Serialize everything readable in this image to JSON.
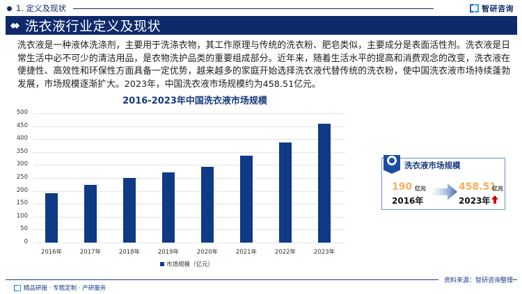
{
  "header": {
    "section_label": "1. 定义及现状",
    "brand_name": "智研咨询",
    "title": "洗衣液行业定义及现状"
  },
  "intro_text": "洗衣液是一种液体洗涤剂，主要用于洗涤衣物，其工作原理与传统的洗衣粉、肥皂类似，主要成分是表面活性剂。洗衣液是日常生活中必不可少的清洁用品，是衣物洗护品类的重要组成部分。近年来，随着生活水平的提高和消费观念的改变，洗衣液在便捷性、高效性和环保性方面具备一定优势，越来越多的家庭开始选择洗衣液代替传统的洗衣粉，使中国洗衣液市场持续蓬勃发展，市场规模逐渐扩大。2023年，中国洗衣液市场规模约为458.51亿元。",
  "chart_data": {
    "type": "bar",
    "title": "2016-2023年中国洗衣液市场规模",
    "categories": [
      "2016年",
      "2017年",
      "2018年",
      "2019年",
      "2020年",
      "2021年",
      "2022年",
      "2023年"
    ],
    "series": [
      {
        "name": "市场规模（亿元）",
        "values": [
          190,
          224,
          251,
          272,
          292,
          336,
          388,
          458.51
        ],
        "color": "#0e3a86"
      }
    ],
    "xlabel": "",
    "ylabel": "",
    "ylim": [
      0,
      500
    ],
    "yticks": [
      "0",
      "50",
      "100",
      "150",
      "200",
      "250",
      "300",
      "350",
      "400",
      "450",
      "500"
    ],
    "grid": true,
    "legend_position": "bottom"
  },
  "card": {
    "title": "洗衣液市场规模",
    "start_value": "190",
    "start_unit": "亿元",
    "start_year": "2016年",
    "end_value": "458.51",
    "end_unit": "亿元",
    "end_year": "2023年",
    "value_color": "#f6b05e",
    "trend_color": "#d40000"
  },
  "footer": {
    "tagline": "精品研报 · 专题定制 · 产研服务",
    "source": "资料来源：智研咨询整理"
  },
  "colors": {
    "primary": "#0e2a6b",
    "bar": "#0e3a86",
    "accent": "#f6b05e"
  }
}
